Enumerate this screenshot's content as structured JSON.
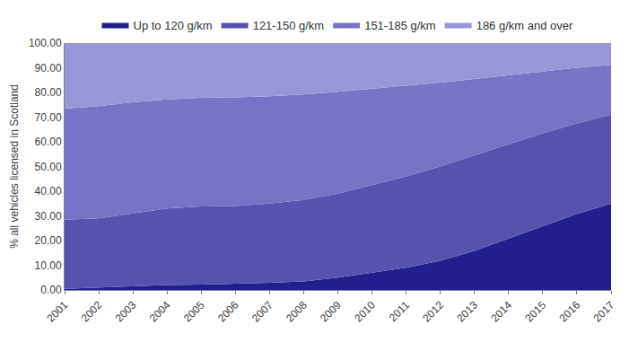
{
  "chart_data": {
    "type": "area",
    "stacked": true,
    "grid": false,
    "legend": "top",
    "y_label": "% all vehicles licensed in Scotland",
    "categories": [
      "2001",
      "2002",
      "2003",
      "2004",
      "2005",
      "2006",
      "2007",
      "2008",
      "2009",
      "2010",
      "2011",
      "2012",
      "2013",
      "2014",
      "2015",
      "2016",
      "2017"
    ],
    "series": [
      {
        "name": "Up to 120 g/km",
        "color": "#221f8c",
        "values": [
          0.5,
          1.0,
          1.5,
          2.0,
          2.2,
          2.5,
          2.9,
          3.5,
          5.0,
          7.0,
          9.0,
          11.8,
          15.8,
          20.8,
          25.8,
          30.8,
          35.0
        ]
      },
      {
        "name": "121-150 g/km",
        "color": "#5752ae",
        "values": [
          28.0,
          28.0,
          29.5,
          31.0,
          31.6,
          31.5,
          32.1,
          33.0,
          34.0,
          35.5,
          37.0,
          38.2,
          38.7,
          38.2,
          37.7,
          36.7,
          36.0
        ]
      },
      {
        "name": "151-185 g/km",
        "color": "#7873c6",
        "values": [
          45.0,
          45.5,
          45.0,
          44.2,
          44.0,
          44.0,
          43.5,
          42.7,
          41.3,
          39.0,
          36.7,
          34.0,
          31.0,
          28.0,
          25.0,
          22.5,
          20.2
        ]
      },
      {
        "name": "186 g/km and over",
        "color": "#9a97d9",
        "values": [
          26.5,
          25.5,
          24.0,
          22.8,
          22.2,
          22.0,
          21.5,
          20.8,
          19.7,
          18.5,
          17.3,
          16.0,
          14.5,
          13.0,
          11.5,
          10.0,
          8.8
        ]
      }
    ],
    "ylim": [
      0,
      100
    ],
    "yticks": [
      {
        "value": 0,
        "label": "0.00"
      },
      {
        "value": 10,
        "label": "10.00"
      },
      {
        "value": 20,
        "label": "20.00"
      },
      {
        "value": 30,
        "label": "30.00"
      },
      {
        "value": 40,
        "label": "40.00"
      },
      {
        "value": 50,
        "label": "50.00"
      },
      {
        "value": 60,
        "label": "60.00"
      },
      {
        "value": 70,
        "label": "70.00"
      },
      {
        "value": 80,
        "label": "80.00"
      },
      {
        "value": 90,
        "label": "90.00"
      },
      {
        "value": 100,
        "label": "100.00"
      }
    ]
  }
}
